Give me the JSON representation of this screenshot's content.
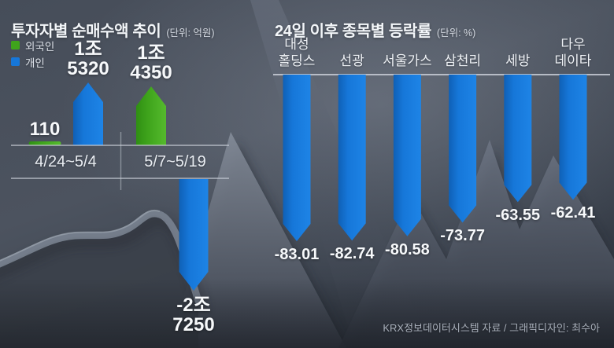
{
  "colors": {
    "blue": "#1677d9",
    "green": "#3fa41c",
    "text_primary": "#f4f6f8",
    "axis_line": "#c8cdd6",
    "credit_text": "#a9b0bb"
  },
  "left_chart": {
    "title": "투자자별 순매수액 추이",
    "unit": "(단위: 억원)",
    "legend": [
      {
        "label": "외국인",
        "color_key": "green"
      },
      {
        "label": "개인",
        "color_key": "blue"
      }
    ],
    "periods": [
      {
        "label": "4/24~5/4",
        "bars": [
          {
            "investor": "외국인",
            "display": [
              "110"
            ],
            "value": 110,
            "color_key": "green"
          },
          {
            "investor": "개인",
            "display": [
              "1조",
              "5320"
            ],
            "value": 15320,
            "color_key": "blue"
          }
        ]
      },
      {
        "label": "5/7~5/19",
        "bars": [
          {
            "investor": "외국인",
            "display": [
              "1조",
              "4350"
            ],
            "value": 14350,
            "color_key": "green"
          },
          {
            "investor": "개인",
            "display": [
              "-2조",
              "7250"
            ],
            "value": -27250,
            "color_key": "blue"
          }
        ]
      }
    ]
  },
  "right_chart": {
    "title": "24일 이후 종목별 등락률",
    "unit": "(단위: %)",
    "items": [
      {
        "name_lines": [
          "대성",
          "홀딩스"
        ],
        "display": "-83.01",
        "value": -83.01
      },
      {
        "name_lines": [
          "선광"
        ],
        "display": "-82.74",
        "value": -82.74
      },
      {
        "name_lines": [
          "서울가스"
        ],
        "display": "-80.58",
        "value": -80.58
      },
      {
        "name_lines": [
          "삼천리"
        ],
        "display": "-73.77",
        "value": -73.77
      },
      {
        "name_lines": [
          "세방"
        ],
        "display": "-63.55",
        "value": -63.55
      },
      {
        "name_lines": [
          "다우",
          "데이타"
        ],
        "display": "-62.41",
        "value": -62.41
      }
    ]
  },
  "footer": {
    "credit": "KRX정보데이터시스템 자료 / 그래픽디자인: 최수아"
  },
  "chart_data": [
    {
      "type": "bar",
      "title": "투자자별 순매수액 추이",
      "unit": "억원",
      "categories": [
        "4/24~5/4",
        "5/7~5/19"
      ],
      "series": [
        {
          "name": "외국인",
          "values": [
            110,
            14350
          ],
          "color": "#3fa41c"
        },
        {
          "name": "개인",
          "values": [
            15320,
            -27250
          ],
          "color": "#1677d9"
        }
      ],
      "legend_position": "top-left",
      "grid": false,
      "bar_style": "arrow"
    },
    {
      "type": "bar",
      "title": "24일 이후 종목별 등락률",
      "unit": "%",
      "categories": [
        "대성홀딩스",
        "선광",
        "서울가스",
        "삼천리",
        "세방",
        "다우데이타"
      ],
      "values": [
        -83.01,
        -82.74,
        -80.58,
        -73.77,
        -63.55,
        -62.41
      ],
      "ylim": [
        -90,
        0
      ],
      "grid": false,
      "bar_style": "arrow",
      "bar_color": "#1677d9"
    }
  ]
}
